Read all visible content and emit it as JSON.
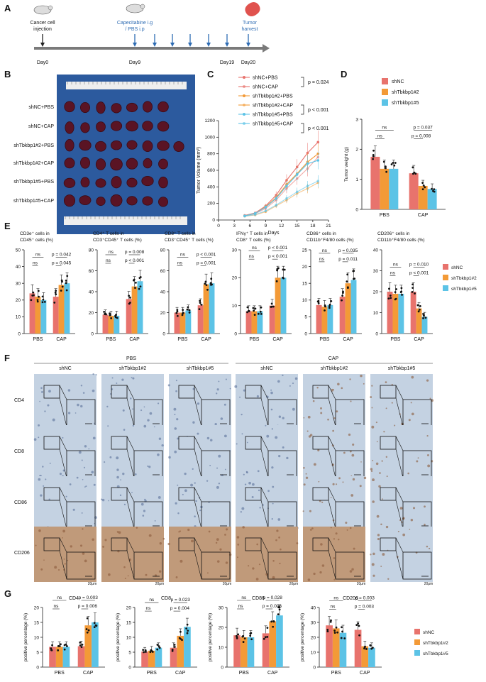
{
  "colors": {
    "shNC": "#e8736d",
    "shTbkbp1_2": "#f39a37",
    "shTbkbp1_5": "#5cc3e6",
    "timeline": "#7a7a7a",
    "blue": "#2e6cb3",
    "photo_bg": "#2c5a9e",
    "ihc_bg": "#b8c8dc"
  },
  "panel_labels": [
    "A",
    "B",
    "C",
    "D",
    "E",
    "F",
    "G"
  ],
  "panel_a": {
    "top_labels": {
      "injection": "Cancer cell injection",
      "treatment": "Capecitabine i.g / PBS i.p",
      "harvest": "Tumor harvest"
    },
    "days": [
      "Day0",
      "Day9",
      "Day19",
      "Day20"
    ]
  },
  "panel_b": {
    "rows": [
      "shNC+PBS",
      "shNC+CAP",
      "shTbkbp1#2+PBS",
      "shTbkbp1#2+CAP",
      "shTbkbp1#5+PBS",
      "shTbkbp1#5+CAP"
    ]
  },
  "groups": [
    "shNC",
    "shTbkbp1#2",
    "shTbkbp1#5"
  ],
  "conditions": [
    "PBS",
    "CAP"
  ],
  "panel_c": {
    "chart_data": {
      "type": "line",
      "x": [
        5,
        7,
        9,
        11,
        13,
        15,
        17,
        19
      ],
      "xlabel": "Days",
      "ylabel": "Tumor Volume (mm³)",
      "xlim": [
        0,
        21
      ],
      "ylim": [
        0,
        1200
      ],
      "xticks": [
        "0",
        "3",
        "6",
        "9",
        "12",
        "15",
        "18",
        "21"
      ],
      "yticks": [
        "0",
        "200",
        "400",
        "600",
        "800",
        "1000",
        "1200"
      ],
      "series": [
        {
          "name": "shNC+PBS",
          "values": [
            55,
            85,
            170,
            300,
            480,
            640,
            810,
            940
          ]
        },
        {
          "name": "shNC+CAP",
          "values": [
            50,
            75,
            140,
            240,
            380,
            500,
            620,
            760
          ]
        },
        {
          "name": "shTbkbp1#2+PBS",
          "values": [
            50,
            80,
            160,
            270,
            430,
            560,
            700,
            800
          ]
        },
        {
          "name": "shTbkbp1#2+CAP",
          "values": [
            45,
            60,
            100,
            170,
            240,
            320,
            380,
            450
          ]
        },
        {
          "name": "shTbkbp1#5+PBS",
          "values": [
            50,
            80,
            155,
            260,
            410,
            550,
            680,
            720
          ]
        },
        {
          "name": "shTbkbp1#5+CAP",
          "values": [
            45,
            65,
            110,
            180,
            260,
            340,
            410,
            470
          ]
        }
      ],
      "pvalues": [
        "p = 0.024",
        "p < 0.001",
        "p < 0.001"
      ]
    }
  },
  "panel_d": {
    "chart_data": {
      "type": "bar",
      "categories": [
        "PBS",
        "CAP"
      ],
      "ylabel": "Tumor weight (g)",
      "ylim": [
        0,
        3
      ],
      "yticks": [
        "0",
        "1",
        "2",
        "3"
      ],
      "series": [
        {
          "name": "shNC",
          "values": [
            1.75,
            1.2
          ]
        },
        {
          "name": "shTbkbp1#2",
          "values": [
            1.35,
            0.78
          ]
        },
        {
          "name": "shTbkbp1#5",
          "values": [
            1.35,
            0.68
          ]
        }
      ],
      "annotations": [
        "ns",
        "ns",
        "p = 0.037",
        "p = 0.008"
      ]
    }
  },
  "panel_e": {
    "charts": [
      {
        "title": "CD3e⁺ cells in CD45⁺ cells (%)",
        "ylim": [
          0,
          50
        ],
        "yticks": [
          "0",
          "10",
          "20",
          "30",
          "40",
          "50"
        ],
        "pbs": [
          24,
          22,
          20
        ],
        "cap": [
          22,
          29,
          30
        ],
        "annotations": [
          "ns",
          "ns",
          "p = 0.042",
          "p = 0.045"
        ]
      },
      {
        "title": "CD4⁺ T cells in CD3⁺CD45⁺ T cells (%)",
        "ylim": [
          0,
          80
        ],
        "yticks": [
          "0",
          "20",
          "40",
          "60",
          "80"
        ],
        "pbs": [
          18,
          17,
          17
        ],
        "cap": [
          33,
          45,
          50
        ],
        "annotations": [
          "ns",
          "ns",
          "p = 0.008",
          "p < 0.001"
        ]
      },
      {
        "title": "CD8⁺ T cells in CD3⁺CD45⁺ T cells (%)",
        "ylim": [
          0,
          80
        ],
        "yticks": [
          "0",
          "20",
          "40",
          "60",
          "80"
        ],
        "pbs": [
          20,
          20,
          22
        ],
        "cap": [
          27,
          47,
          48
        ],
        "annotations": [
          "ns",
          "ns",
          "p < 0.001",
          "p = 0.001"
        ]
      },
      {
        "title": "IFNγ⁺ T cells in CD8⁺ T cells (%)",
        "ylim": [
          0,
          30
        ],
        "yticks": [
          "0",
          "10",
          "20",
          "30"
        ],
        "pbs": [
          8,
          8,
          8
        ],
        "cap": [
          10,
          20,
          20
        ],
        "annotations": [
          "ns",
          "ns",
          "p < 0.001",
          "p < 0.001"
        ]
      },
      {
        "title": "CD86⁺ cells in CD11b⁺F4/80 cells (%)",
        "ylim": [
          0,
          25
        ],
        "yticks": [
          "0",
          "5",
          "10",
          "15",
          "20",
          "25"
        ],
        "pbs": [
          8.5,
          8,
          8.5
        ],
        "cap": [
          11,
          15,
          16
        ],
        "annotations": [
          "ns",
          "ns",
          "p = 0.035",
          "p = 0.011"
        ]
      },
      {
        "title": "CD206⁺ cells in CD11b⁺F4/80 cells (%)",
        "ylim": [
          0,
          40
        ],
        "yticks": [
          "0",
          "10",
          "20",
          "30",
          "40"
        ],
        "pbs": [
          20,
          19,
          19
        ],
        "cap": [
          20,
          12,
          8
        ],
        "annotations": [
          "ns",
          "ns",
          "p = 0.010",
          "p < 0.001"
        ]
      }
    ]
  },
  "panel_f": {
    "cond_headers": [
      "PBS",
      "CAP"
    ],
    "col_headers": [
      "shNC",
      "shTbkbp1#2",
      "shTbkbp1#5",
      "shNC",
      "shTbkbp1#2",
      "shTbkbp1#5"
    ],
    "rows": [
      "CD4",
      "CD8",
      "CD86",
      "CD206"
    ],
    "scale_bar": "20μm"
  },
  "panel_g": {
    "ylabel": "positive percentage (%)",
    "charts": [
      {
        "title": "CD4",
        "ylim": [
          0,
          20
        ],
        "yticks": [
          "0",
          "5",
          "10",
          "15",
          "20"
        ],
        "pbs": [
          6.8,
          6.8,
          6.8
        ],
        "cap": [
          7,
          14,
          15
        ],
        "annotations": [
          "ns",
          "ns",
          "p = 0.003",
          "p = 0.006"
        ]
      },
      {
        "title": "CD8",
        "ylim": [
          0,
          20
        ],
        "yticks": [
          "0",
          "5",
          "10",
          "15",
          "20"
        ],
        "pbs": [
          5.2,
          5.5,
          6.5
        ],
        "cap": [
          6.5,
          10.5,
          13.5
        ],
        "annotations": [
          "ns",
          "ns",
          "p = 0.023",
          "p = 0.004"
        ]
      },
      {
        "title": "CD86",
        "ylim": [
          0,
          30
        ],
        "yticks": [
          "0",
          "10",
          "20",
          "30"
        ],
        "pbs": [
          16,
          15,
          15
        ],
        "cap": [
          17,
          23,
          26
        ],
        "annotations": [
          "ns",
          "ns",
          "p = 0.028",
          "p = 0.006"
        ]
      },
      {
        "title": "CD206",
        "ylim": [
          0,
          40
        ],
        "yticks": [
          "0",
          "10",
          "20",
          "30",
          "40"
        ],
        "pbs": [
          28,
          26,
          23
        ],
        "cap": [
          25,
          14,
          13
        ],
        "annotations": [
          "ns",
          "ns",
          "p = 0.003",
          "p = 0.003"
        ]
      }
    ]
  }
}
